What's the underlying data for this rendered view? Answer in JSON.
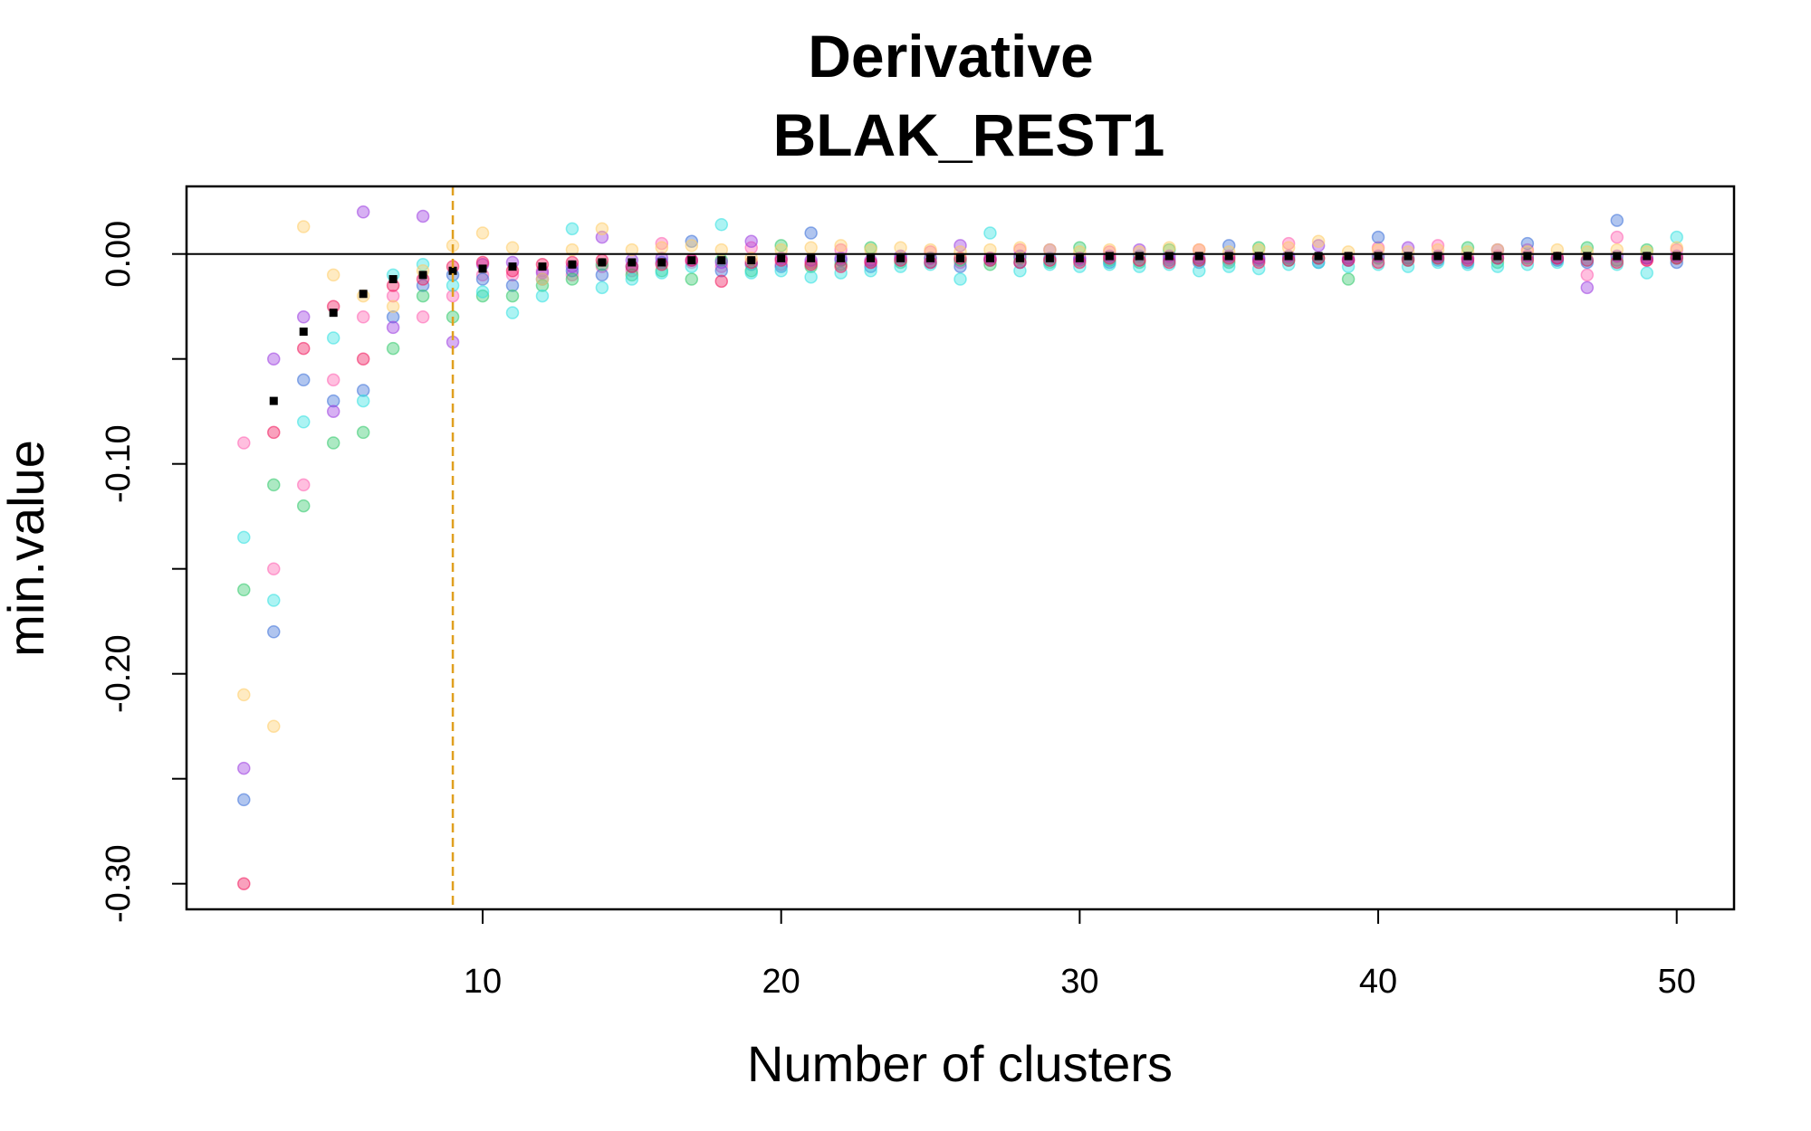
{
  "chart_data": {
    "type": "scatter",
    "title": "Derivative",
    "subtitle": "BLAK_REST1",
    "x_label": "Number of clusters",
    "y_label": "min.value",
    "x": [
      2,
      3,
      4,
      5,
      6,
      7,
      8,
      9,
      10,
      11,
      12,
      13,
      14,
      15,
      16,
      17,
      18,
      19,
      20,
      21,
      22,
      23,
      24,
      25,
      26,
      27,
      28,
      29,
      30,
      31,
      32,
      33,
      34,
      35,
      36,
      37,
      38,
      39,
      40,
      41,
      42,
      43,
      44,
      45,
      46,
      47,
      48,
      49,
      50
    ],
    "xlim": [
      0.08,
      51.92
    ],
    "xticks": [
      10,
      20,
      30,
      40,
      50
    ],
    "ylim": [
      -0.3122,
      0.0322
    ],
    "yticks": [
      {
        "value": 0,
        "label": "0.00"
      },
      {
        "value": -0.05,
        "label": null
      },
      {
        "value": -0.1,
        "label": "-0.10"
      },
      {
        "value": -0.15,
        "label": null
      },
      {
        "value": -0.2,
        "label": "-0.20"
      },
      {
        "value": -0.25,
        "label": null
      },
      {
        "value": -0.3,
        "label": "-0.30"
      }
    ],
    "hline": 0,
    "hline_color": "#000000",
    "vline": 9,
    "vline_color": "#e0a020",
    "series": [
      {
        "color": "#ff5fb0",
        "values": [
          -0.09,
          -0.15,
          -0.11,
          -0.06,
          -0.03,
          -0.02,
          -0.03,
          -0.02,
          -0.01,
          -0.01,
          -0.008,
          -0.01,
          -0.006,
          -0.008,
          0.005,
          -0.004,
          -0.006,
          0.003,
          -0.005,
          -0.004,
          0.002,
          -0.004,
          -0.003,
          0.001,
          -0.004,
          -0.002,
          0.002,
          -0.003,
          -0.002,
          0.001,
          -0.003,
          -0.002,
          0.002,
          -0.003,
          -0.002,
          0.005,
          -0.002,
          -0.003,
          0.003,
          -0.002,
          0.004,
          -0.002,
          -0.001,
          0.002,
          -0.003,
          -0.01,
          0.008,
          -0.003,
          0.002
        ]
      },
      {
        "color": "#3a6fd8",
        "values": [
          -0.26,
          -0.18,
          -0.06,
          -0.07,
          -0.065,
          -0.03,
          -0.015,
          -0.01,
          -0.012,
          -0.015,
          -0.012,
          -0.008,
          -0.01,
          -0.006,
          -0.004,
          0.006,
          -0.008,
          -0.005,
          -0.006,
          0.01,
          -0.003,
          -0.006,
          -0.002,
          -0.004,
          -0.006,
          -0.003,
          -0.004,
          -0.002,
          -0.003,
          -0.004,
          -0.001,
          -0.003,
          -0.004,
          0.004,
          -0.003,
          -0.002,
          -0.004,
          -0.003,
          0.008,
          -0.002,
          -0.003,
          -0.004,
          -0.002,
          0.005,
          -0.003,
          -0.004,
          0.016,
          -0.002,
          -0.004
        ]
      },
      {
        "color": "#2fc86a",
        "values": [
          -0.16,
          -0.11,
          -0.12,
          -0.09,
          -0.085,
          -0.045,
          -0.02,
          -0.03,
          -0.02,
          -0.02,
          -0.015,
          -0.012,
          -0.005,
          -0.01,
          -0.008,
          -0.012,
          -0.003,
          -0.008,
          0.004,
          -0.006,
          -0.005,
          0.003,
          -0.004,
          -0.002,
          -0.003,
          -0.005,
          -0.002,
          -0.004,
          0.003,
          -0.003,
          -0.004,
          0.002,
          -0.003,
          -0.004,
          0.003,
          -0.003,
          -0.002,
          -0.012,
          -0.002,
          -0.003,
          -0.002,
          0.003,
          -0.004,
          -0.002,
          -0.002,
          0.003,
          -0.003,
          0.002,
          -0.002
        ]
      },
      {
        "color": "#30e0e0",
        "values": [
          -0.135,
          -0.165,
          -0.08,
          -0.04,
          -0.07,
          -0.01,
          -0.005,
          -0.015,
          -0.018,
          -0.028,
          -0.02,
          0.012,
          -0.016,
          -0.012,
          -0.009,
          -0.006,
          0.014,
          -0.009,
          -0.008,
          -0.011,
          -0.009,
          -0.008,
          -0.006,
          -0.005,
          -0.012,
          0.01,
          -0.008,
          -0.005,
          -0.006,
          -0.005,
          -0.006,
          -0.005,
          -0.008,
          -0.006,
          -0.007,
          -0.005,
          -0.004,
          -0.006,
          -0.005,
          -0.006,
          -0.004,
          -0.005,
          -0.006,
          -0.005,
          -0.004,
          -0.003,
          -0.005,
          -0.009,
          0.008
        ]
      },
      {
        "color": "#9a3ae0",
        "values": [
          -0.245,
          -0.05,
          -0.03,
          -0.075,
          0.02,
          -0.035,
          0.018,
          -0.042,
          -0.005,
          -0.004,
          -0.009,
          -0.006,
          0.008,
          -0.003,
          -0.002,
          -0.003,
          -0.004,
          0.006,
          -0.002,
          -0.003,
          -0.002,
          -0.003,
          -0.001,
          -0.002,
          0.004,
          -0.002,
          -0.001,
          0.002,
          -0.002,
          -0.001,
          0.002,
          -0.001,
          -0.002,
          -0.001,
          -0.002,
          -0.001,
          0.004,
          -0.002,
          -0.001,
          0.003,
          -0.001,
          -0.002,
          0.002,
          -0.001,
          -0.002,
          -0.016,
          -0.001,
          -0.002,
          -0.001
        ]
      },
      {
        "color": "#f0145a",
        "values": [
          -0.3,
          -0.085,
          -0.045,
          -0.025,
          -0.05,
          -0.015,
          -0.012,
          -0.006,
          -0.004,
          -0.008,
          -0.005,
          -0.004,
          -0.003,
          -0.006,
          -0.005,
          -0.003,
          -0.013,
          -0.004,
          -0.003,
          -0.005,
          -0.006,
          -0.004,
          -0.003,
          -0.004,
          -0.002,
          -0.003,
          -0.004,
          -0.003,
          -0.004,
          -0.002,
          -0.003,
          -0.004,
          -0.003,
          -0.002,
          -0.004,
          -0.003,
          -0.002,
          -0.003,
          -0.004,
          -0.003,
          -0.002,
          -0.003,
          -0.002,
          -0.003,
          -0.002,
          -0.003,
          -0.004,
          -0.003,
          -0.002
        ]
      },
      {
        "color": "#ffcc66",
        "values": [
          -0.21,
          -0.225,
          0.013,
          -0.01,
          -0.02,
          -0.025,
          -0.008,
          0.004,
          0.01,
          0.003,
          -0.012,
          0.002,
          0.012,
          0.002,
          0.003,
          0.004,
          0.002,
          -0.002,
          0.002,
          0.003,
          0.004,
          0.002,
          0.003,
          0.002,
          0.001,
          0.002,
          0.003,
          0.002,
          0.001,
          0.002,
          0.001,
          0.003,
          0.002,
          0.001,
          0.002,
          0.003,
          0.006,
          0.001,
          0.002,
          0.001,
          0.002,
          0.001,
          0.002,
          0.001,
          0.002,
          0.001,
          0.002,
          0.001,
          0.003
        ]
      },
      {
        "color": "#000000",
        "marker": "square",
        "values": [
          null,
          -0.07,
          -0.037,
          -0.028,
          -0.019,
          -0.012,
          -0.01,
          -0.008,
          -0.007,
          -0.006,
          -0.006,
          -0.005,
          -0.004,
          -0.004,
          -0.004,
          -0.003,
          -0.003,
          -0.003,
          -0.002,
          -0.002,
          -0.002,
          -0.002,
          -0.002,
          -0.002,
          -0.002,
          -0.002,
          -0.002,
          -0.002,
          -0.002,
          -0.001,
          -0.001,
          -0.001,
          -0.001,
          -0.001,
          -0.001,
          -0.001,
          -0.001,
          -0.001,
          -0.001,
          -0.001,
          -0.001,
          -0.001,
          -0.001,
          -0.001,
          -0.001,
          -0.001,
          -0.001,
          -0.001,
          -0.001
        ]
      }
    ]
  }
}
